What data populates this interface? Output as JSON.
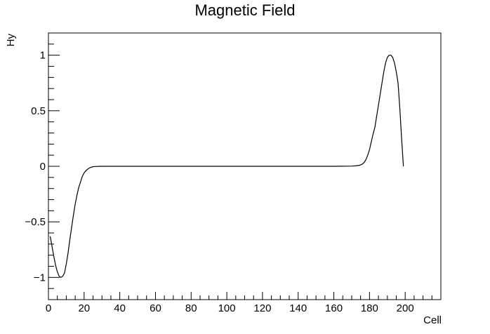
{
  "chart_data": {
    "type": "line",
    "title": "Magnetic Field",
    "xlabel": "Cell",
    "ylabel": "Hy",
    "xlim": [
      0,
      220
    ],
    "ylim": [
      -1.2,
      1.2
    ],
    "x_ticks": [
      0,
      20,
      40,
      60,
      80,
      100,
      120,
      140,
      160,
      180,
      200
    ],
    "x_tick_labels": [
      "0",
      "20",
      "40",
      "60",
      "80",
      "100",
      "120",
      "140",
      "160",
      "180",
      "200"
    ],
    "y_ticks": [
      -1,
      -0.5,
      0,
      0.5,
      1
    ],
    "y_tick_labels": [
      "−1",
      "−0.5",
      "0",
      "0.5",
      "1"
    ],
    "grid": false,
    "series": [
      {
        "color": "#000000",
        "x": [
          1,
          2,
          3,
          4,
          5,
          6,
          7,
          8,
          9,
          10,
          11,
          12,
          13,
          14,
          15,
          16,
          17,
          18,
          19,
          20,
          21,
          22,
          23,
          24,
          25,
          26,
          28,
          30,
          35,
          40,
          60,
          80,
          100,
          120,
          140,
          160,
          170,
          172,
          174,
          175,
          176,
          177,
          178,
          179,
          180,
          181,
          182,
          183,
          184,
          185,
          186,
          187,
          188,
          189,
          190,
          191,
          192,
          193,
          194,
          195,
          196,
          197,
          198,
          199
        ],
        "y": [
          -0.63,
          -0.72,
          -0.81,
          -0.89,
          -0.95,
          -0.99,
          -1.0,
          -0.99,
          -0.96,
          -0.88,
          -0.78,
          -0.66,
          -0.55,
          -0.44,
          -0.34,
          -0.26,
          -0.19,
          -0.14,
          -0.09,
          -0.06,
          -0.04,
          -0.025,
          -0.015,
          -0.008,
          -0.004,
          -0.002,
          -0.001,
          0.0,
          0.0,
          0.0,
          0.0,
          0.0,
          0.0,
          0.0,
          0.0,
          0.0,
          0.002,
          0.004,
          0.008,
          0.012,
          0.02,
          0.035,
          0.06,
          0.1,
          0.15,
          0.22,
          0.29,
          0.35,
          0.45,
          0.55,
          0.65,
          0.75,
          0.85,
          0.93,
          0.98,
          1.0,
          1.0,
          0.98,
          0.93,
          0.85,
          0.75,
          0.52,
          0.25,
          0.0
        ]
      }
    ]
  }
}
